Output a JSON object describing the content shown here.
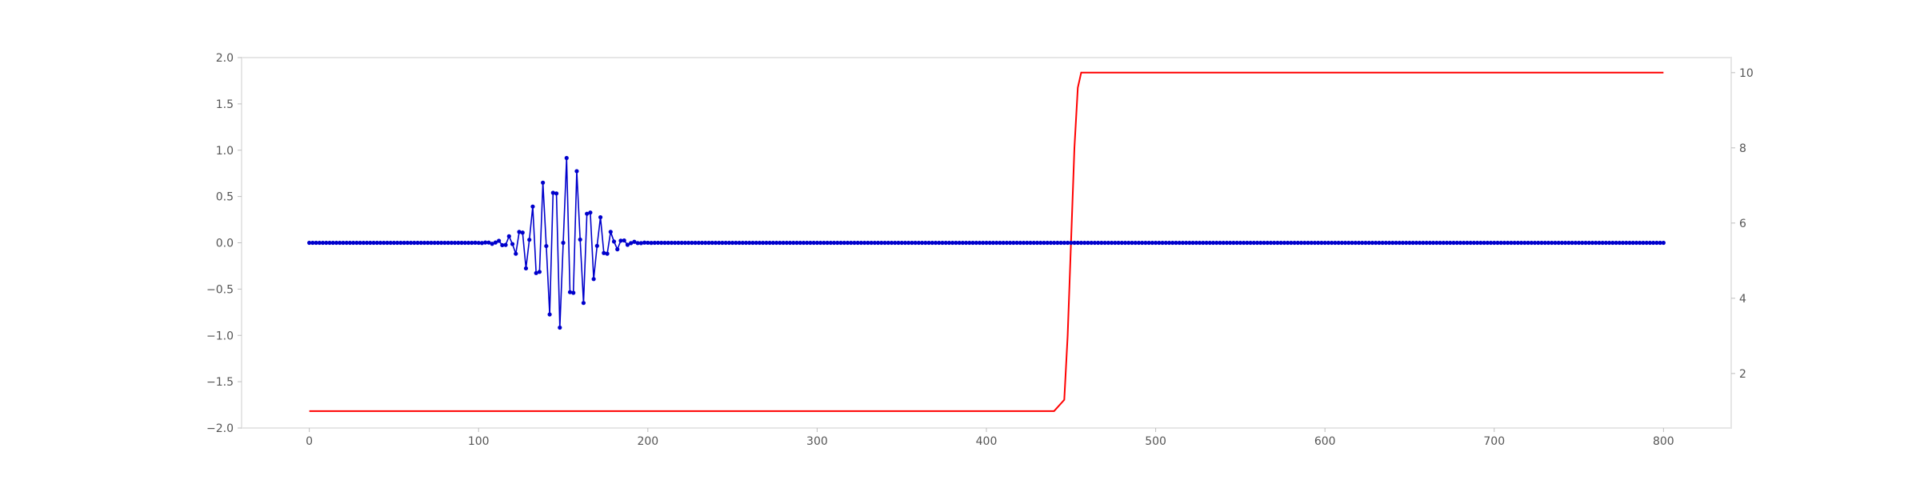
{
  "chart_data": {
    "type": "line",
    "title": "",
    "xlabel": "",
    "ylabel": "",
    "y2label": "",
    "xlim": [
      -40,
      840
    ],
    "ylim": [
      -2.0,
      2.0
    ],
    "y2lim": [
      0.55,
      10.4
    ],
    "grid": false,
    "x_ticks": [
      "0",
      "100",
      "200",
      "300",
      "400",
      "500",
      "600",
      "700",
      "800"
    ],
    "y_ticks": [
      "2.0",
      "1.5",
      "1.0",
      "0.5",
      "0.0",
      "−0.5",
      "−1.0",
      "−1.5",
      "−2.0"
    ],
    "y2_ticks": [
      "10",
      "8",
      "6",
      "4",
      "2"
    ],
    "series": [
      {
        "axis": "left",
        "color": "#0000cc",
        "marker": "dot",
        "description": "wave packet: zero outside ~x=110..190, oscillation peaking near x=150 with amplitude ~0.95",
        "x_start": 0,
        "x_end": 800,
        "x_step": 2,
        "packet_center": 150,
        "packet_width": 14,
        "packet_period": 6.7,
        "packet_amplitude": 0.97
      },
      {
        "axis": "right",
        "color": "#ff0000",
        "marker": "none",
        "description": "step: value 1 until x≈448, rising to 10 by x≈455",
        "x": [
          0,
          440,
          446,
          448,
          450,
          452,
          454,
          456,
          800
        ],
        "values": [
          1,
          1,
          1.3,
          3,
          5.5,
          8,
          9.6,
          10,
          10
        ]
      }
    ]
  }
}
